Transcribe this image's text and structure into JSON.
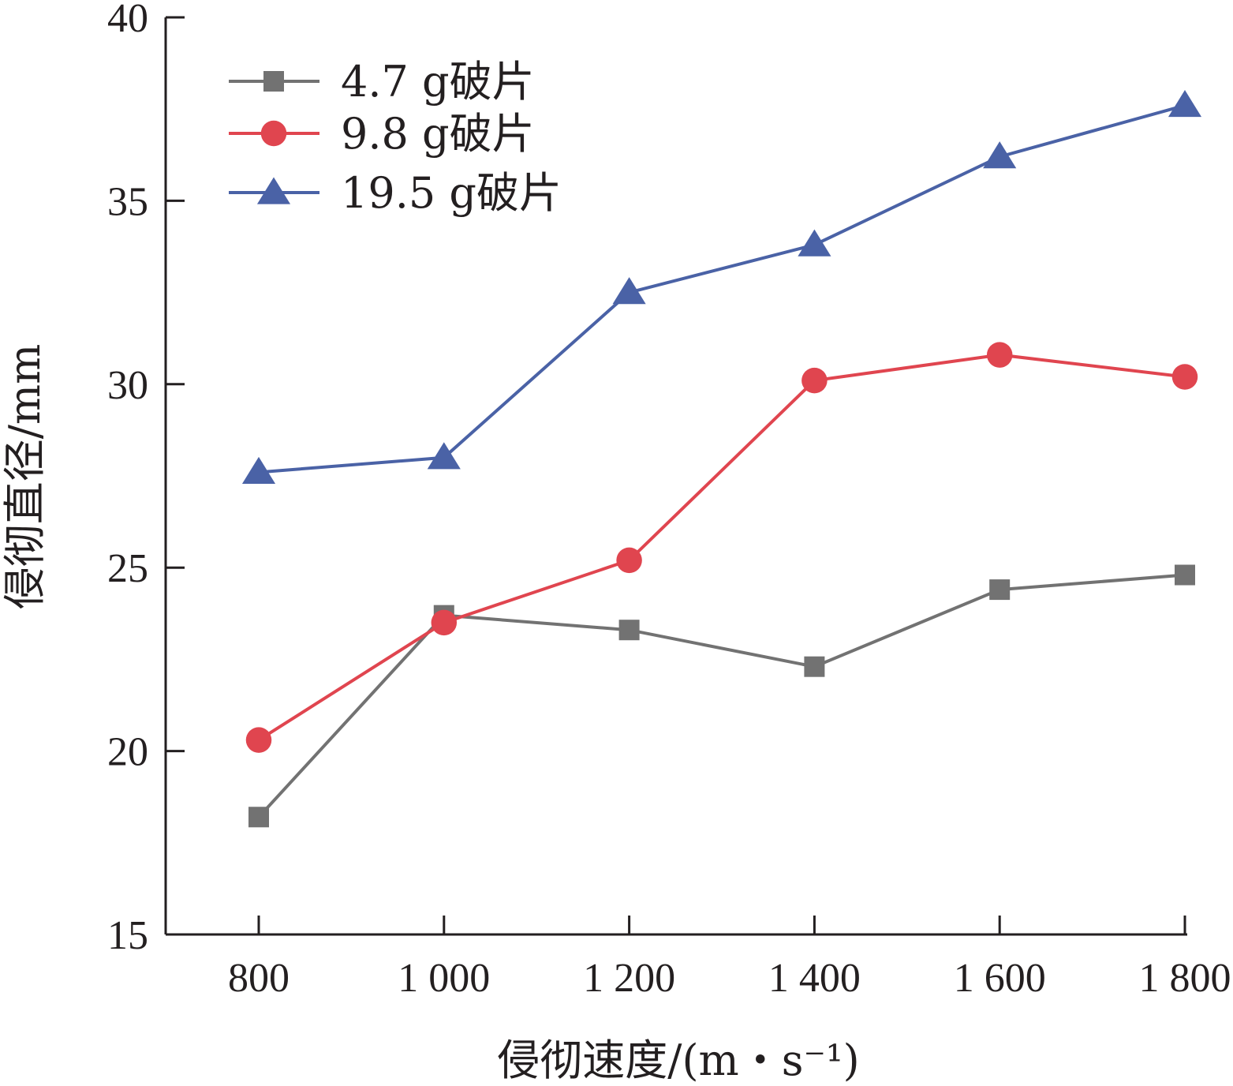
{
  "chart_data": {
    "type": "line",
    "title": "",
    "xlabel": "侵彻速度/(m・s⁻¹)",
    "ylabel": "侵彻直径/mm",
    "x": [
      800,
      1000,
      1200,
      1400,
      1600,
      1800
    ],
    "x_tick_labels": [
      "800",
      "1 000",
      "1 200",
      "1 400",
      "1 600",
      "1 800"
    ],
    "y_ticks": [
      15,
      20,
      25,
      30,
      35,
      40
    ],
    "y_tick_labels": [
      "15",
      "20",
      "25",
      "30",
      "35",
      "40"
    ],
    "ylim": [
      15,
      40
    ],
    "grid": false,
    "legend_position": "top-left",
    "series": [
      {
        "name": "4.7 g破片",
        "marker": "square",
        "color": "#727272",
        "values": [
          18.2,
          23.7,
          23.3,
          22.3,
          24.4,
          24.8
        ]
      },
      {
        "name": "9.8 g破片",
        "marker": "circle",
        "color": "#e0454f",
        "values": [
          20.3,
          23.5,
          25.2,
          30.1,
          30.8,
          30.2
        ]
      },
      {
        "name": "19.5 g破片",
        "marker": "triangle",
        "color": "#4a62a6",
        "values": [
          27.6,
          28.0,
          32.5,
          33.8,
          36.2,
          37.6
        ]
      }
    ]
  }
}
